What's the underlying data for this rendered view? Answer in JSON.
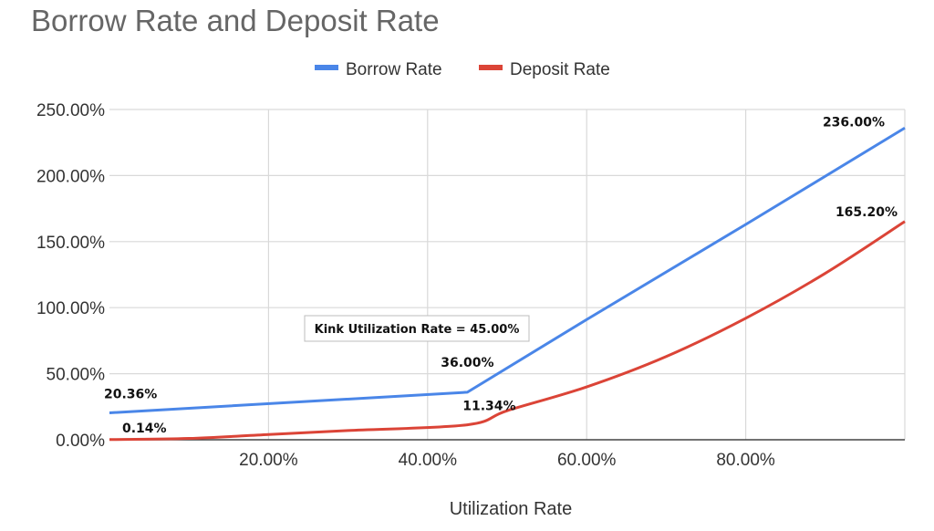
{
  "chart_data": {
    "type": "line",
    "title": "Borrow Rate and Deposit Rate",
    "xlabel": "Utilization Rate",
    "ylabel": "",
    "xlim": [
      0,
      100
    ],
    "ylim": [
      0,
      250
    ],
    "x_ticks": [
      20,
      40,
      60,
      80
    ],
    "x_tick_labels": [
      "20.00%",
      "40.00%",
      "60.00%",
      "80.00%"
    ],
    "y_ticks": [
      0,
      50,
      100,
      150,
      200,
      250
    ],
    "y_tick_labels": [
      "0.00%",
      "50.00%",
      "100.00%",
      "150.00%",
      "200.00%",
      "250.00%"
    ],
    "grid": true,
    "legend_position": "top",
    "series": [
      {
        "name": "Borrow Rate",
        "color": "#4a86e8",
        "x": [
          0,
          45,
          60,
          80,
          100
        ],
        "values": [
          20.36,
          36,
          91,
          163,
          236
        ]
      },
      {
        "name": "Deposit Rate",
        "color": "#db4437",
        "x": [
          0,
          10,
          20,
          30,
          45,
          50,
          60,
          70,
          80,
          90,
          100
        ],
        "values": [
          0.14,
          1,
          4,
          7,
          11.34,
          22,
          40,
          63,
          92,
          126,
          165.2
        ]
      }
    ],
    "data_labels": [
      {
        "text": "20.36%",
        "x": 0,
        "y": 20.36,
        "series": "Borrow Rate"
      },
      {
        "text": "0.14%",
        "x": 0,
        "y": 0.14,
        "series": "Deposit Rate"
      },
      {
        "text": "36.00%",
        "x": 45,
        "y": 36,
        "series": "Borrow Rate"
      },
      {
        "text": "11.34%",
        "x": 45,
        "y": 11.34,
        "series": "Deposit Rate"
      },
      {
        "text": "236.00%",
        "x": 100,
        "y": 236,
        "series": "Borrow Rate"
      },
      {
        "text": "165.20%",
        "x": 100,
        "y": 165.2,
        "series": "Deposit Rate"
      }
    ],
    "annotations": [
      {
        "text": "Kink Utilization Rate = 45.00%"
      }
    ]
  }
}
